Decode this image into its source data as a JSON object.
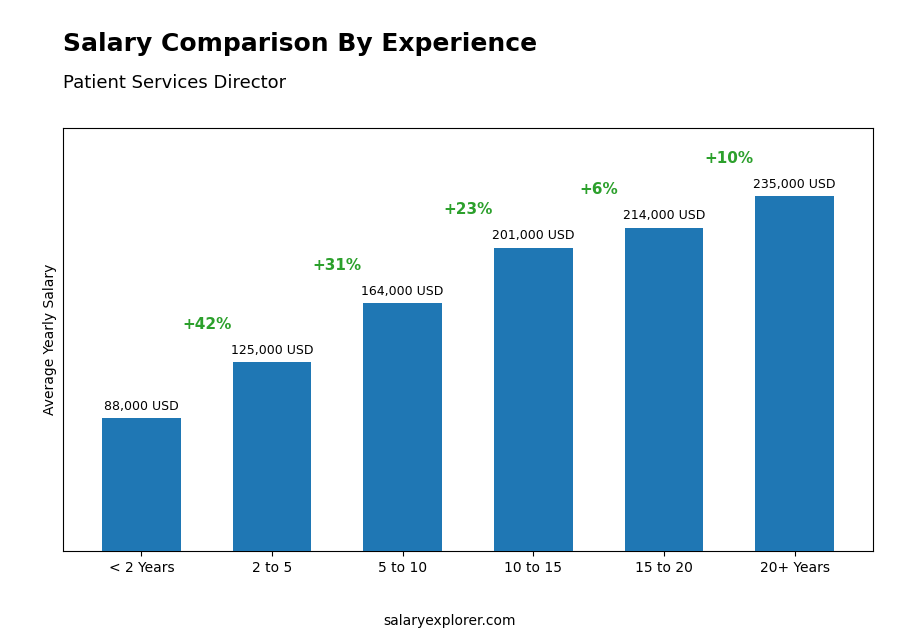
{
  "chart_data": {
    "type": "bar",
    "title": "Salary Comparison By Experience",
    "subtitle": "Patient Services Director",
    "y_label": "Average Yearly Salary",
    "watermark": "salaryexplorer.com",
    "categories": [
      "< 2 Years",
      "2 to 5",
      "5 to 10",
      "10 to 15",
      "15 to 20",
      "20+ Years"
    ],
    "values": [
      88000,
      125000,
      164000,
      201000,
      214000,
      235000
    ],
    "value_labels": [
      "88,000 USD",
      "125,000 USD",
      "164,000 USD",
      "201,000 USD",
      "214,000 USD",
      "235,000 USD"
    ],
    "data_labels": true,
    "annotations": [
      "+42%",
      "+31%",
      "+23%",
      "+6%",
      "+10%"
    ],
    "ylim": [
      0,
      280000
    ],
    "tick_labels": "x",
    "grid": false
  }
}
